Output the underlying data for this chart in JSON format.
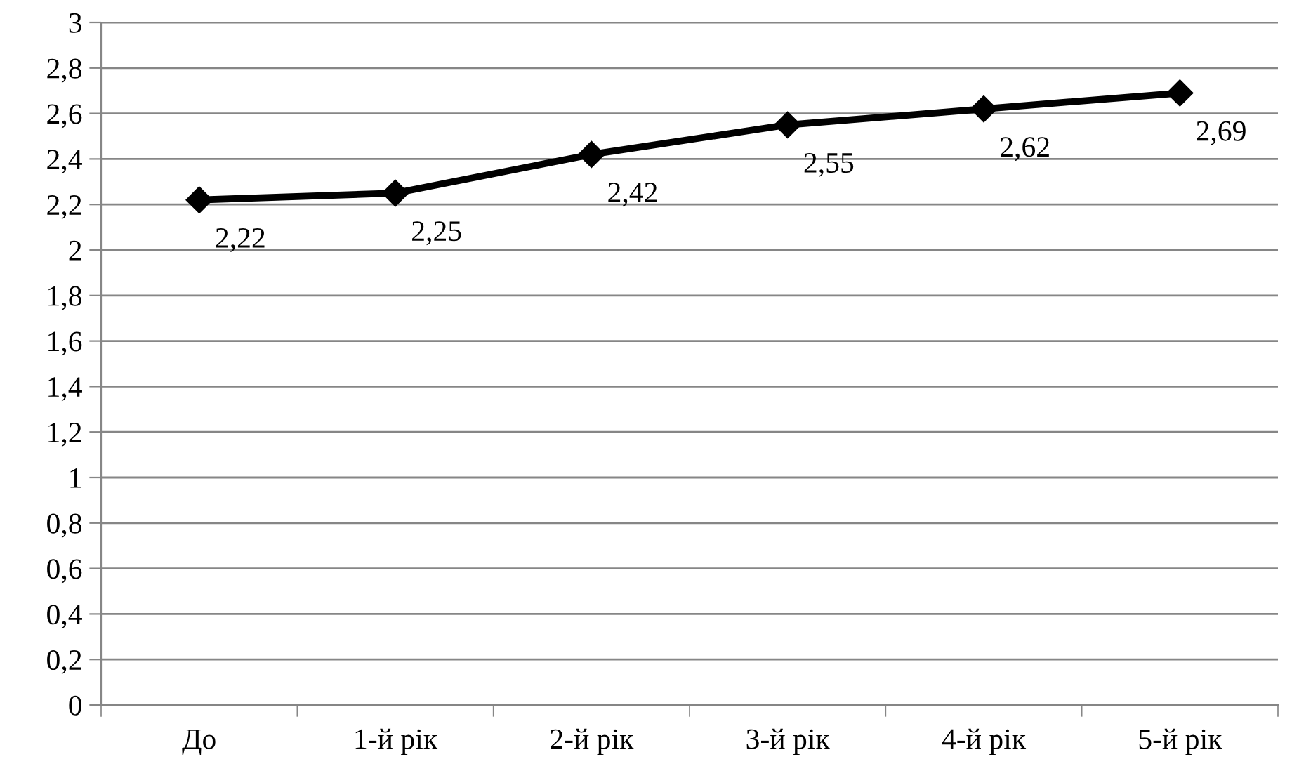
{
  "chart_data": {
    "type": "line",
    "categories": [
      "До",
      "1-й рік",
      "2-й рік",
      "3-й рік",
      "4-й рік",
      "5-й рік"
    ],
    "values": [
      2.22,
      2.25,
      2.42,
      2.55,
      2.62,
      2.69
    ],
    "value_labels": [
      "2,22",
      "2,25",
      "2,42",
      "2,55",
      "2,62",
      "2,69"
    ],
    "color": "#000000",
    "marker": "diamond",
    "line_style": "solid",
    "grid": "y",
    "ylim": [
      0,
      3
    ],
    "yticks": [
      0,
      {
        "value": 0.2,
        "label": "0,2"
      },
      {
        "value": 0.4,
        "label": "0,4"
      },
      {
        "value": 0.6,
        "label": "0,6"
      },
      {
        "value": 0.8,
        "label": "0,8"
      },
      1,
      {
        "value": 1.2,
        "label": "1,2"
      },
      {
        "value": 1.4,
        "label": "1,4"
      },
      {
        "value": 1.6,
        "label": "1,6"
      },
      {
        "value": 1.8,
        "label": "1,8"
      },
      2,
      {
        "value": 2.2,
        "label": "2,2"
      },
      {
        "value": 2.4,
        "label": "2,4"
      },
      {
        "value": 2.6,
        "label": "2,6"
      },
      {
        "value": 2.8,
        "label": "2,8"
      },
      3
    ]
  }
}
